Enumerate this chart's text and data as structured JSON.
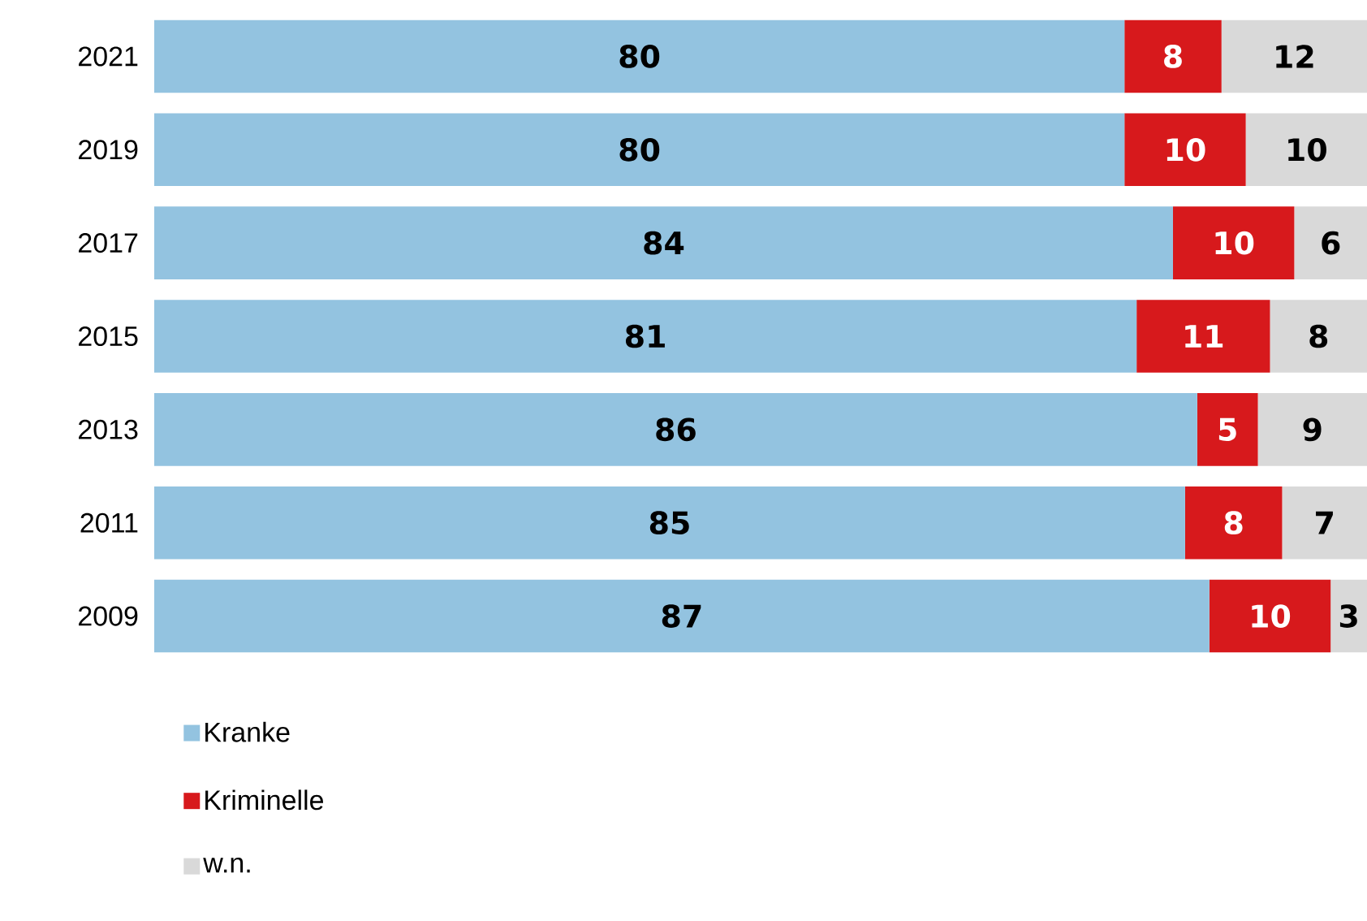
{
  "chart_data": {
    "type": "bar",
    "orientation": "horizontal",
    "stacked": true,
    "categories": [
      "2021",
      "2019",
      "2017",
      "2015",
      "2013",
      "2011",
      "2009"
    ],
    "series": [
      {
        "name": "Kranke",
        "color": "#93c3e0",
        "values": [
          80,
          80,
          84,
          81,
          86,
          85,
          87
        ]
      },
      {
        "name": "Kriminelle",
        "color": "#d7191c",
        "values": [
          8,
          10,
          10,
          11,
          5,
          8,
          10
        ]
      },
      {
        "name": "w.n.",
        "color": "#d9d9d9",
        "values": [
          12,
          10,
          6,
          8,
          9,
          7,
          3
        ]
      }
    ],
    "data_labels": true,
    "tick_labels": "y",
    "legend": "bottom left",
    "grid": false
  }
}
